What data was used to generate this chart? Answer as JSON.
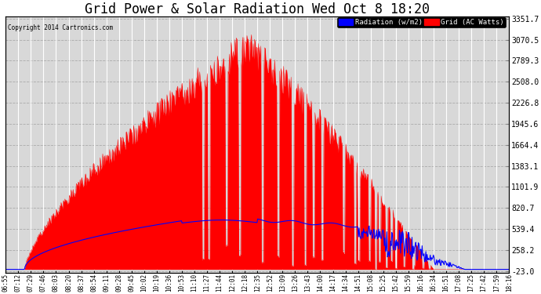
{
  "title": "Grid Power & Solar Radiation Wed Oct 8 18:20",
  "copyright": "Copyright 2014 Cartronics.com",
  "legend_radiation": "Radiation (w/m2)",
  "legend_grid": "Grid (AC Watts)",
  "ymin": -23.0,
  "ymax": 3351.7,
  "yticks": [
    3351.7,
    3070.5,
    2789.3,
    2508.0,
    2226.8,
    1945.6,
    1664.4,
    1383.1,
    1101.9,
    820.7,
    539.4,
    258.2,
    -23.0
  ],
  "background_color": "#ffffff",
  "plot_bg_color": "#d8d8d8",
  "grid_color": "#ffffff",
  "radiation_color": "#0000ff",
  "grid_ac_color": "#ff0000",
  "title_fontsize": 12,
  "x_times": [
    "06:55",
    "07:12",
    "07:29",
    "07:46",
    "08:03",
    "08:20",
    "08:37",
    "08:54",
    "09:11",
    "09:28",
    "09:45",
    "10:02",
    "10:19",
    "10:36",
    "10:53",
    "11:10",
    "11:27",
    "11:44",
    "12:01",
    "12:18",
    "12:35",
    "12:52",
    "13:09",
    "13:26",
    "13:43",
    "14:00",
    "14:17",
    "14:34",
    "14:51",
    "15:08",
    "15:25",
    "15:42",
    "15:59",
    "16:16",
    "16:34",
    "16:51",
    "17:08",
    "17:25",
    "17:42",
    "17:59",
    "18:16"
  ]
}
